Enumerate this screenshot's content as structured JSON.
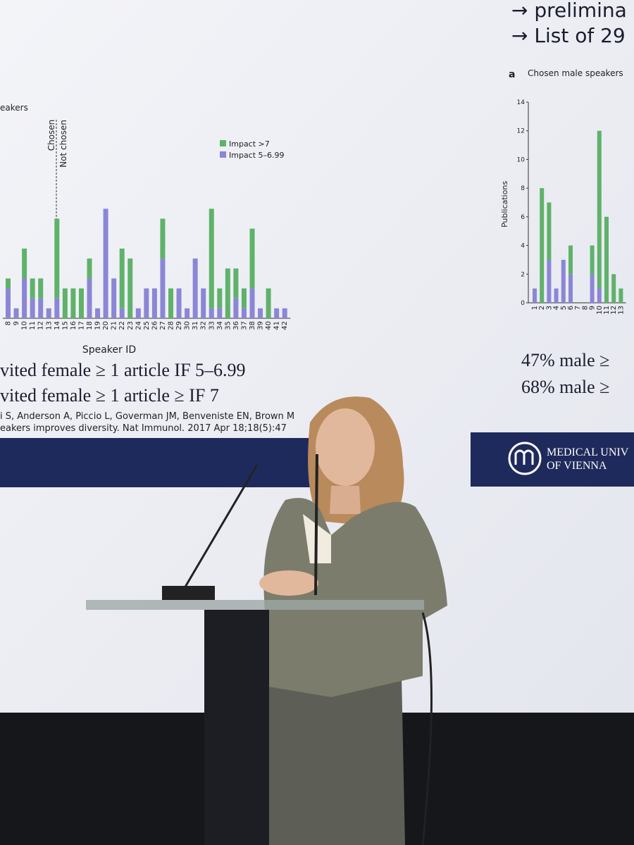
{
  "slide": {
    "bullets": [
      "→ prelimina",
      "→ List of 29"
    ],
    "left_fragment": "eakers",
    "divider_labels": [
      "Chosen",
      "Not chosen"
    ],
    "left_findings": [
      "vited female ≥ 1 article IF 5–6.99",
      "vited female ≥ 1 article ≥ IF 7"
    ],
    "reference": [
      "i S, Anderson A, Piccio L, Goverman JM, Benveniste EN, Brown M",
      "eakers improves diversity. Nat Immunol. 2017 Apr 18;18(5):47"
    ],
    "right_findings": [
      "47% male ≥",
      "68% male ≥"
    ],
    "panel_letter": "a",
    "logo": [
      "MEDICAL UNIV",
      "OF VIENNA"
    ]
  },
  "chart_data": [
    {
      "type": "bar",
      "stacked": true,
      "x_label": "Speaker ID",
      "categories": [
        "8",
        "9",
        "10",
        "11",
        "12",
        "13",
        "14",
        "15",
        "16",
        "17",
        "18",
        "19",
        "20",
        "21",
        "22",
        "23",
        "24",
        "25",
        "26",
        "27",
        "28",
        "29",
        "30",
        "31",
        "32",
        "33",
        "34",
        "35",
        "36",
        "37",
        "38",
        "39",
        "40",
        "41",
        "42"
      ],
      "series": [
        {
          "name": "Impact 5–6.99",
          "color": "#8b86d6",
          "values": [
            3,
            1,
            4,
            2,
            2,
            1,
            2,
            0,
            0,
            0,
            4,
            1,
            11,
            4,
            1,
            0,
            1,
            3,
            3,
            6,
            0,
            3,
            1,
            6,
            3,
            1,
            1,
            0,
            2,
            1,
            3,
            1,
            0,
            1,
            1
          ]
        },
        {
          "name": "Impact >7",
          "color": "#5fb26a",
          "values": [
            1,
            0,
            3,
            2,
            2,
            0,
            8,
            3,
            3,
            3,
            2,
            0,
            0,
            0,
            6,
            6,
            0,
            0,
            0,
            4,
            3,
            0,
            0,
            0,
            0,
            10,
            2,
            5,
            3,
            2,
            6,
            0,
            3,
            0,
            0
          ]
        }
      ],
      "ylim": [
        0,
        14
      ]
    },
    {
      "type": "bar",
      "stacked": true,
      "title": "Chosen male speakers",
      "y_label": "Publications",
      "categories": [
        "1",
        "2",
        "3",
        "4",
        "5",
        "6",
        "7",
        "8",
        "9",
        "10",
        "11",
        "12",
        "13"
      ],
      "series": [
        {
          "color": "#8b86d6",
          "values": [
            1,
            0,
            3,
            1,
            3,
            2,
            0,
            0,
            2,
            1,
            0,
            0,
            0
          ]
        },
        {
          "color": "#5fb26a",
          "values": [
            0,
            8,
            4,
            0,
            0,
            2,
            0,
            0,
            2,
            11,
            6,
            2,
            1
          ]
        }
      ],
      "ylim": [
        0,
        14
      ],
      "yticks": [
        0,
        2,
        4,
        6,
        8,
        10,
        12,
        14
      ]
    }
  ]
}
